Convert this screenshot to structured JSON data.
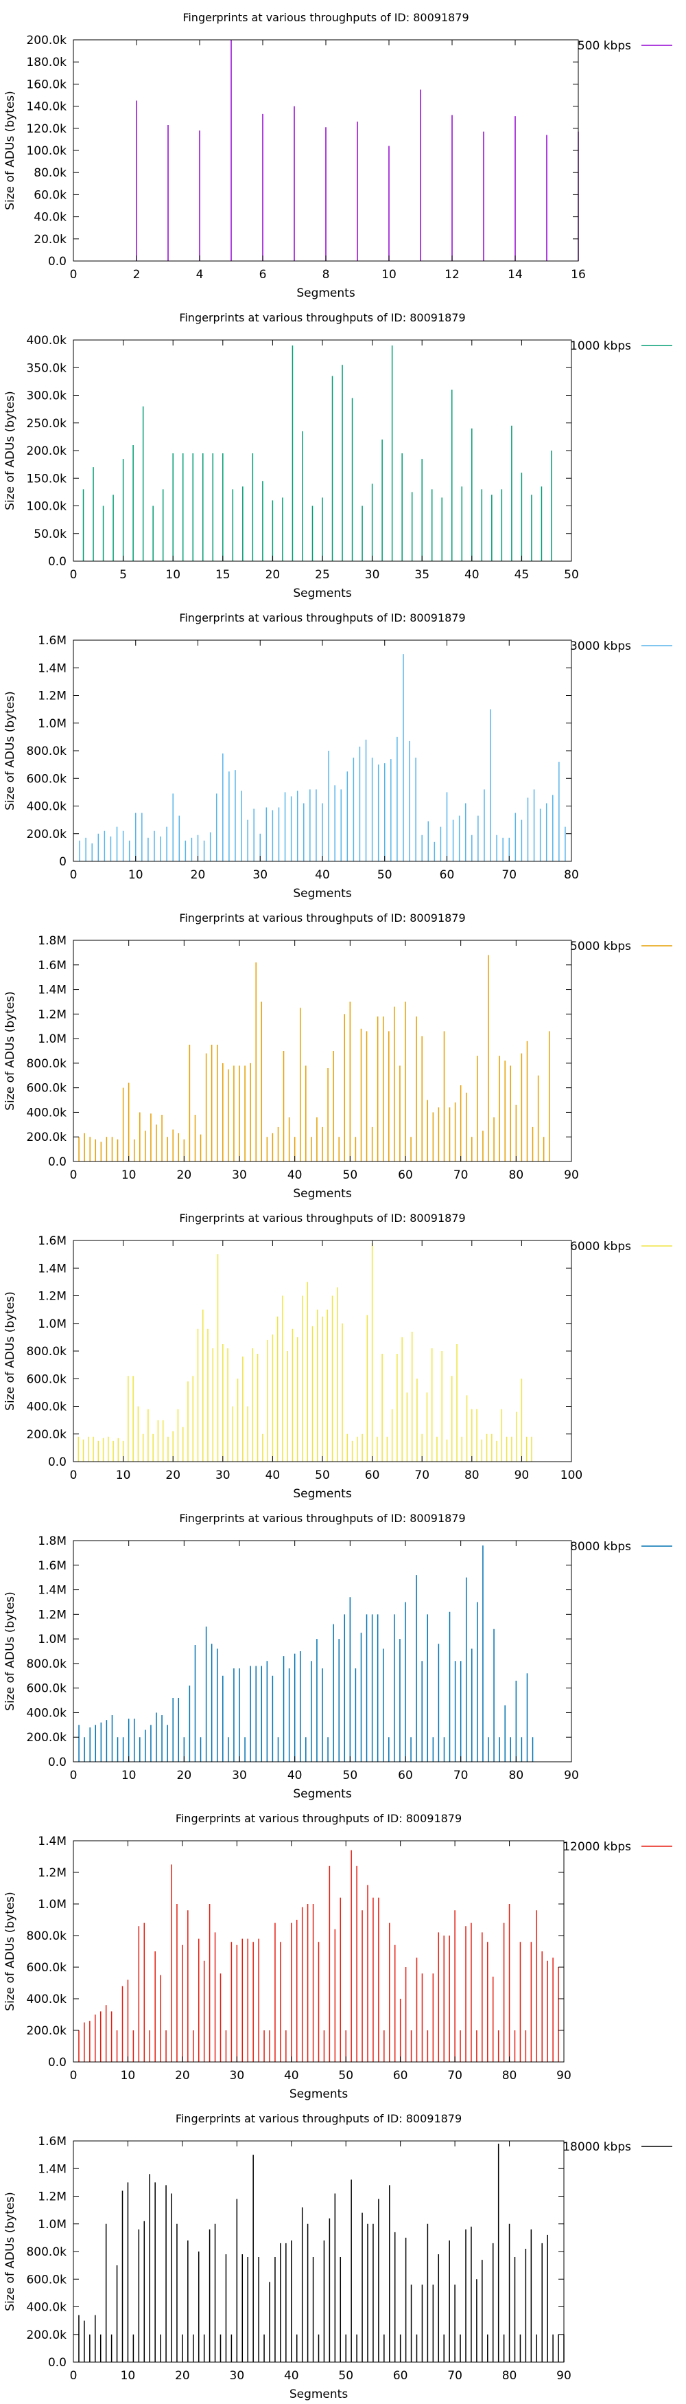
{
  "chart_data": [
    {
      "type": "bar",
      "title": "Fingerprints at various throughputs of ID: 80091879",
      "xlabel": "Segments",
      "ylabel": "Size of ADUs (bytes)",
      "legend": "500 kbps",
      "color": "#9400d3",
      "xlim": [
        0,
        16
      ],
      "xticks": [
        0,
        2,
        4,
        6,
        8,
        10,
        12,
        14,
        16
      ],
      "ylim": [
        0,
        200000
      ],
      "yticks": [
        0,
        20000,
        40000,
        60000,
        80000,
        100000,
        120000,
        140000,
        160000,
        180000,
        200000
      ],
      "ytick_labels": [
        "0.0",
        "20.0k",
        "40.0k",
        "60.0k",
        "80.0k",
        "100.0k",
        "120.0k",
        "140.0k",
        "160.0k",
        "180.0k",
        "200.0k"
      ],
      "legend_position": "outside-top-right",
      "grid": false,
      "values": [
        0,
        145000,
        123000,
        118000,
        200000,
        133000,
        140000,
        121000,
        126000,
        104000,
        155000,
        132000,
        117000,
        131000,
        114000,
        117000
      ]
    },
    {
      "type": "bar",
      "title": "Fingerprints at various throughputs of ID: 80091879",
      "xlabel": "Segments",
      "ylabel": "Size of ADUs (bytes)",
      "legend": "1000 kbps",
      "color": "#009e73",
      "xlim": [
        0,
        50
      ],
      "xticks": [
        0,
        5,
        10,
        15,
        20,
        25,
        30,
        35,
        40,
        45,
        50
      ],
      "ylim": [
        0,
        400000
      ],
      "yticks": [
        0,
        50000,
        100000,
        150000,
        200000,
        250000,
        300000,
        350000,
        400000
      ],
      "ytick_labels": [
        "0.0",
        "50.0k",
        "100.0k",
        "150.0k",
        "200.0k",
        "250.0k",
        "300.0k",
        "350.0k",
        "400.0k"
      ],
      "legend_position": "outside-top-right",
      "grid": false,
      "values": [
        130000,
        170000,
        100000,
        120000,
        185000,
        210000,
        280000,
        100000,
        130000,
        195000,
        195000,
        195000,
        195000,
        195000,
        195000,
        130000,
        135000,
        195000,
        145000,
        110000,
        115000,
        390000,
        235000,
        100000,
        115000,
        335000,
        355000,
        295000,
        100000,
        140000,
        220000,
        390000,
        195000,
        125000,
        185000,
        130000,
        115000,
        310000,
        135000,
        240000,
        130000,
        120000,
        130000,
        245000,
        160000,
        120000,
        135000,
        200000
      ]
    },
    {
      "type": "bar",
      "title": "Fingerprints at various throughputs of ID: 80091879",
      "xlabel": "Segments",
      "ylabel": "Size of ADUs (bytes)",
      "legend": "3000 kbps",
      "color": "#56b4e9",
      "xlim": [
        0,
        80
      ],
      "xticks": [
        0,
        10,
        20,
        30,
        40,
        50,
        60,
        70,
        80
      ],
      "ylim": [
        0,
        1600000
      ],
      "yticks": [
        0,
        200000,
        400000,
        600000,
        800000,
        1000000,
        1200000,
        1400000,
        1600000
      ],
      "ytick_labels": [
        "0",
        "200.0k",
        "400.0k",
        "600.0k",
        "800.0k",
        "1.0M",
        "1.2M",
        "1.4M",
        "1.6M"
      ],
      "legend_position": "outside-top-right",
      "grid": false,
      "values": [
        150000,
        170000,
        130000,
        200000,
        220000,
        180000,
        250000,
        220000,
        150000,
        350000,
        350000,
        170000,
        220000,
        180000,
        250000,
        490000,
        330000,
        150000,
        170000,
        190000,
        150000,
        210000,
        490000,
        780000,
        650000,
        660000,
        510000,
        300000,
        380000,
        200000,
        390000,
        370000,
        390000,
        500000,
        470000,
        510000,
        420000,
        520000,
        520000,
        420000,
        800000,
        550000,
        520000,
        650000,
        750000,
        830000,
        880000,
        750000,
        700000,
        710000,
        740000,
        900000,
        1500000,
        870000,
        750000,
        190000,
        290000,
        140000,
        250000,
        500000,
        300000,
        330000,
        420000,
        190000,
        330000,
        520000,
        1100000,
        190000,
        170000,
        170000,
        350000,
        300000,
        460000,
        520000,
        380000,
        420000,
        480000,
        720000,
        250000
      ]
    },
    {
      "type": "bar",
      "title": "Fingerprints at various throughputs of ID: 80091879",
      "xlabel": "Segments",
      "ylabel": "Size of ADUs (bytes)",
      "legend": "5000 kbps",
      "color": "#e69f00",
      "xlim": [
        0,
        90
      ],
      "xticks": [
        0,
        10,
        20,
        30,
        40,
        50,
        60,
        70,
        80,
        90
      ],
      "ylim": [
        0,
        1800000
      ],
      "yticks": [
        0,
        200000,
        400000,
        600000,
        800000,
        1000000,
        1200000,
        1400000,
        1600000,
        1800000
      ],
      "ytick_labels": [
        "0.0",
        "200.0k",
        "400.0k",
        "600.0k",
        "800.0k",
        "1.0M",
        "1.2M",
        "1.4M",
        "1.6M",
        "1.8M"
      ],
      "legend_position": "outside-top-right",
      "grid": false,
      "values": [
        200000,
        230000,
        200000,
        180000,
        160000,
        200000,
        200000,
        180000,
        600000,
        640000,
        180000,
        400000,
        250000,
        390000,
        300000,
        380000,
        200000,
        260000,
        230000,
        180000,
        950000,
        380000,
        220000,
        880000,
        950000,
        950000,
        800000,
        750000,
        780000,
        780000,
        780000,
        800000,
        1620000,
        1300000,
        200000,
        230000,
        280000,
        900000,
        360000,
        200000,
        1250000,
        780000,
        200000,
        360000,
        280000,
        760000,
        900000,
        200000,
        1200000,
        1300000,
        200000,
        1080000,
        1060000,
        280000,
        1180000,
        1180000,
        1060000,
        1260000,
        780000,
        1300000,
        200000,
        1180000,
        1020000,
        500000,
        400000,
        440000,
        1060000,
        440000,
        480000,
        620000,
        560000,
        200000,
        860000,
        250000,
        1680000,
        360000,
        860000,
        820000,
        780000,
        460000,
        880000,
        980000,
        280000,
        700000,
        200000,
        1060000
      ]
    },
    {
      "type": "bar",
      "title": "Fingerprints at various throughputs of ID: 80091879",
      "xlabel": "Segments",
      "ylabel": "Size of ADUs (bytes)",
      "legend": "6000 kbps",
      "color": "#f0e442",
      "xlim": [
        0,
        100
      ],
      "xticks": [
        0,
        10,
        20,
        30,
        40,
        50,
        60,
        70,
        80,
        90,
        100
      ],
      "ylim": [
        0,
        1600000
      ],
      "yticks": [
        0,
        200000,
        400000,
        600000,
        800000,
        1000000,
        1200000,
        1400000,
        1600000
      ],
      "ytick_labels": [
        "0.0",
        "200.0k",
        "400.0k",
        "600.0k",
        "800.0k",
        "1.0M",
        "1.2M",
        "1.4M",
        "1.6M"
      ],
      "legend_position": "outside-top-right",
      "grid": false,
      "values": [
        180000,
        160000,
        180000,
        180000,
        150000,
        170000,
        180000,
        150000,
        170000,
        150000,
        620000,
        620000,
        400000,
        200000,
        380000,
        200000,
        300000,
        300000,
        180000,
        220000,
        380000,
        250000,
        580000,
        620000,
        960000,
        1100000,
        960000,
        820000,
        1500000,
        850000,
        820000,
        400000,
        600000,
        760000,
        400000,
        820000,
        780000,
        200000,
        880000,
        920000,
        1050000,
        1200000,
        800000,
        960000,
        900000,
        1200000,
        1300000,
        980000,
        1100000,
        1050000,
        1100000,
        1200000,
        1260000,
        1000000,
        200000,
        150000,
        180000,
        200000,
        1060000,
        1580000,
        180000,
        780000,
        180000,
        380000,
        780000,
        900000,
        500000,
        940000,
        600000,
        200000,
        500000,
        820000,
        180000,
        800000,
        160000,
        620000,
        850000,
        180000,
        480000,
        380000,
        380000,
        160000,
        200000,
        200000,
        150000,
        380000,
        180000,
        180000,
        360000,
        600000,
        180000,
        180000
      ]
    },
    {
      "type": "bar",
      "title": "Fingerprints at various throughputs of ID: 80091879",
      "xlabel": "Segments",
      "ylabel": "Size of ADUs (bytes)",
      "legend": "8000 kbps",
      "color": "#0072b2",
      "xlim": [
        0,
        90
      ],
      "xticks": [
        0,
        10,
        20,
        30,
        40,
        50,
        60,
        70,
        80,
        90
      ],
      "ylim": [
        0,
        1800000
      ],
      "yticks": [
        0,
        200000,
        400000,
        600000,
        800000,
        1000000,
        1200000,
        1400000,
        1600000,
        1800000
      ],
      "ytick_labels": [
        "0.0",
        "200.0k",
        "400.0k",
        "600.0k",
        "800.0k",
        "1.0M",
        "1.2M",
        "1.4M",
        "1.6M",
        "1.8M"
      ],
      "legend_position": "outside-top-right",
      "grid": false,
      "values": [
        300000,
        200000,
        280000,
        300000,
        320000,
        340000,
        380000,
        200000,
        200000,
        350000,
        350000,
        200000,
        260000,
        300000,
        400000,
        380000,
        300000,
        520000,
        520000,
        200000,
        620000,
        950000,
        200000,
        1100000,
        960000,
        920000,
        700000,
        200000,
        760000,
        760000,
        200000,
        780000,
        780000,
        780000,
        820000,
        700000,
        200000,
        860000,
        760000,
        880000,
        900000,
        200000,
        820000,
        1000000,
        760000,
        200000,
        1120000,
        1000000,
        1200000,
        1340000,
        760000,
        1050000,
        1200000,
        1200000,
        1200000,
        920000,
        200000,
        1200000,
        1000000,
        1300000,
        200000,
        1520000,
        820000,
        1200000,
        200000,
        960000,
        200000,
        1220000,
        820000,
        820000,
        1500000,
        920000,
        1300000,
        1760000,
        200000,
        1080000,
        200000,
        460000,
        200000,
        660000,
        200000,
        720000,
        200000
      ]
    },
    {
      "type": "bar",
      "title": "Fingerprints at various throughputs of ID: 80091879",
      "xlabel": "Segments",
      "ylabel": "Size of ADUs (bytes)",
      "legend": "12000 kbps",
      "color": "#e51e10",
      "xlim": [
        0,
        90
      ],
      "xticks": [
        0,
        10,
        20,
        30,
        40,
        50,
        60,
        70,
        80,
        90
      ],
      "ylim": [
        0,
        1400000
      ],
      "yticks": [
        0,
        200000,
        400000,
        600000,
        800000,
        1000000,
        1200000,
        1400000
      ],
      "ytick_labels": [
        "0.0",
        "200.0k",
        "400.0k",
        "600.0k",
        "800.0k",
        "1.0M",
        "1.2M",
        "1.4M"
      ],
      "legend_position": "outside-top-right",
      "grid": false,
      "values": [
        200000,
        250000,
        260000,
        300000,
        320000,
        360000,
        320000,
        200000,
        480000,
        520000,
        200000,
        860000,
        880000,
        200000,
        700000,
        550000,
        200000,
        1250000,
        1000000,
        740000,
        960000,
        200000,
        780000,
        640000,
        1000000,
        820000,
        560000,
        200000,
        760000,
        740000,
        780000,
        780000,
        760000,
        780000,
        200000,
        200000,
        880000,
        760000,
        200000,
        880000,
        900000,
        980000,
        1000000,
        1000000,
        760000,
        200000,
        1240000,
        840000,
        1040000,
        200000,
        1340000,
        1240000,
        960000,
        1120000,
        1040000,
        1040000,
        200000,
        880000,
        740000,
        400000,
        600000,
        200000,
        660000,
        560000,
        200000,
        560000,
        820000,
        800000,
        800000,
        960000,
        200000,
        860000,
        880000,
        200000,
        820000,
        760000,
        540000,
        200000,
        880000,
        1000000,
        200000,
        760000,
        200000,
        760000,
        960000,
        700000,
        640000,
        660000,
        600000
      ]
    },
    {
      "type": "bar",
      "title": "Fingerprints at various throughputs of ID: 80091879",
      "xlabel": "Segments",
      "ylabel": "Size of ADUs (bytes)",
      "legend": "18000 kbps",
      "color": "#000000",
      "xlim": [
        0,
        90
      ],
      "xticks": [
        0,
        10,
        20,
        30,
        40,
        50,
        60,
        70,
        80,
        90
      ],
      "ylim": [
        0,
        1600000
      ],
      "yticks": [
        0,
        200000,
        400000,
        600000,
        800000,
        1000000,
        1200000,
        1400000,
        1600000
      ],
      "ytick_labels": [
        "0.0",
        "200.0k",
        "400.0k",
        "600.0k",
        "800.0k",
        "1.0M",
        "1.2M",
        "1.4M",
        "1.6M"
      ],
      "legend_position": "outside-top-right",
      "grid": false,
      "values": [
        340000,
        300000,
        200000,
        340000,
        200000,
        1000000,
        200000,
        700000,
        1240000,
        1300000,
        200000,
        960000,
        1020000,
        1360000,
        1300000,
        200000,
        1280000,
        1220000,
        1000000,
        200000,
        880000,
        200000,
        800000,
        200000,
        960000,
        1000000,
        200000,
        780000,
        200000,
        1180000,
        780000,
        760000,
        1500000,
        760000,
        200000,
        580000,
        760000,
        860000,
        860000,
        880000,
        200000,
        1120000,
        1000000,
        760000,
        200000,
        880000,
        1040000,
        1220000,
        760000,
        200000,
        1320000,
        200000,
        1080000,
        1000000,
        1000000,
        1180000,
        200000,
        1280000,
        940000,
        200000,
        900000,
        560000,
        200000,
        560000,
        1000000,
        560000,
        780000,
        200000,
        880000,
        560000,
        200000,
        960000,
        980000,
        600000,
        740000,
        200000,
        860000,
        1580000,
        200000,
        1000000,
        760000,
        200000,
        820000,
        960000,
        200000,
        860000,
        920000,
        200000,
        200000,
        200000
      ]
    }
  ]
}
